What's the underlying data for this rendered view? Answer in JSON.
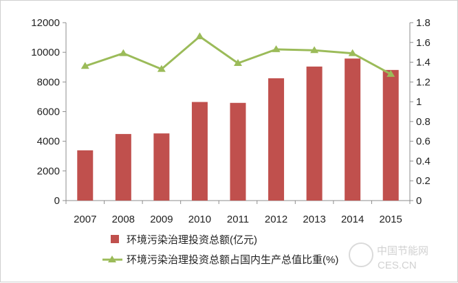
{
  "chart_data": {
    "type": "bar+line",
    "categories": [
      "2007",
      "2008",
      "2009",
      "2010",
      "2011",
      "2012",
      "2013",
      "2014",
      "2015"
    ],
    "series": [
      {
        "name": "环境污染治理投资总额(亿元)",
        "type": "bar",
        "axis": "left",
        "color": "#c0504d",
        "values": [
          3390,
          4490,
          4530,
          6650,
          6590,
          8250,
          9040,
          9580,
          8810
        ]
      },
      {
        "name": "环境污染治理投资总额占国内生产总值比重(%)",
        "type": "line",
        "axis": "right",
        "color": "#9bbb59",
        "marker": "triangle",
        "values": [
          1.36,
          1.49,
          1.33,
          1.66,
          1.39,
          1.53,
          1.52,
          1.49,
          1.28
        ]
      }
    ],
    "y_left": {
      "ylim": [
        0,
        12000
      ],
      "ticks": [
        "0",
        "2000",
        "4000",
        "6000",
        "8000",
        "10000",
        "12000"
      ]
    },
    "y_right": {
      "ylim": [
        0,
        1.8
      ],
      "ticks": [
        "0",
        "0.2",
        "0.4",
        "0.6",
        "0.8",
        "1",
        "1.2",
        "1.4",
        "1.6",
        "1.8"
      ]
    },
    "grid": false,
    "legend_position": "bottom"
  },
  "watermark": {
    "text": "中国节能网",
    "subtext": "CES.CN"
  }
}
